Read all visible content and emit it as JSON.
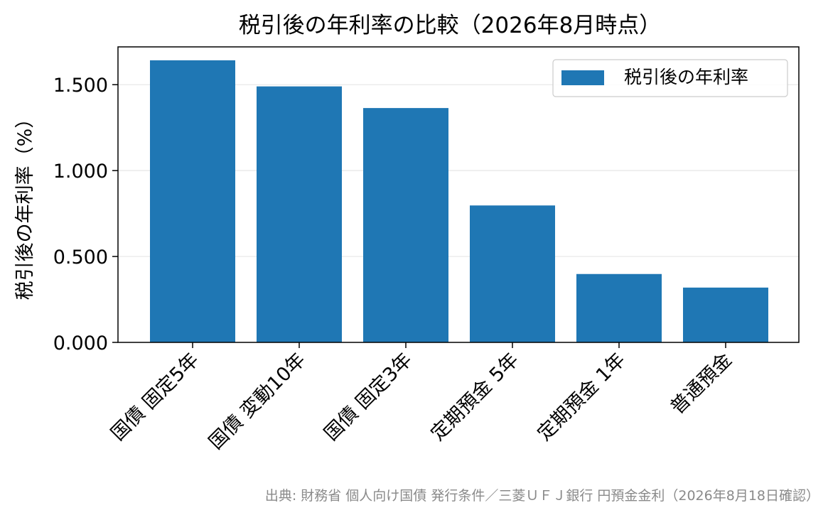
{
  "chart_data": {
    "type": "bar",
    "title": "税引後の年利率の比較（2026年8月時点）",
    "xlabel": "",
    "ylabel": "税引後の年利率（%）",
    "categories": [
      "国債 固定5年",
      "国債 変動10年",
      "国債 固定3年",
      "定期預金 5年",
      "定期預金 1年",
      "普通預金"
    ],
    "series": [
      {
        "name": "税引後の年利率",
        "values": [
          1.642,
          1.49,
          1.364,
          0.797,
          0.398,
          0.319
        ]
      }
    ],
    "ylim": [
      0,
      1.72
    ],
    "yticks": [
      0.0,
      0.5,
      1.0,
      1.5
    ],
    "ytick_labels": [
      "0.000",
      "0.500",
      "1.000",
      "1.500"
    ],
    "grid": "horizontal",
    "legend": "top-right",
    "colors": {
      "bar": "#1f77b4"
    }
  },
  "source": "出典: 財務省 個人向け国債 発行条件／三菱ＵＦＪ銀行 円預金金利（2026年8月18日確認）"
}
